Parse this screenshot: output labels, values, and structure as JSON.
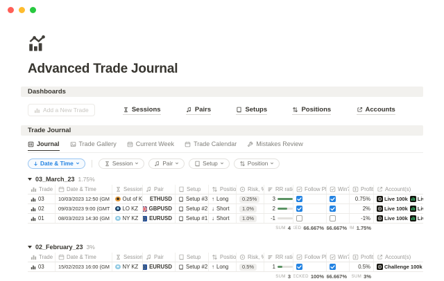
{
  "page": {
    "title": "Advanced Trade Journal",
    "icon": "trend-chart"
  },
  "colors": {
    "accent": "#2383e2",
    "progress_green": "#5b9363",
    "session_orange": "#e39a3b",
    "session_navy": "#1d3c63",
    "session_sky": "#93cbe4",
    "account_chart_green": "#38c172"
  },
  "dashboards": {
    "heading": "Dashboards",
    "add_button": "Add a New Trade",
    "links": [
      {
        "icon": "hourglass",
        "label": "Sessions"
      },
      {
        "icon": "note",
        "label": "Pairs"
      },
      {
        "icon": "book",
        "label": "Setups"
      },
      {
        "icon": "updown",
        "label": "Positions"
      },
      {
        "icon": "relation",
        "label": "Accounts"
      }
    ]
  },
  "journal": {
    "heading": "Trade Journal",
    "tabs": [
      {
        "icon": "database",
        "label": "Journal",
        "active": true
      },
      {
        "icon": "gallery",
        "label": "Trade Gallery",
        "active": false
      },
      {
        "icon": "calendar-week",
        "label": "Current Week",
        "active": false
      },
      {
        "icon": "calendar",
        "label": "Trade Calendar",
        "active": false
      },
      {
        "icon": "wrench",
        "label": "Mistakes Review",
        "active": false
      }
    ],
    "sort": {
      "label": "Date & Time"
    },
    "filters": [
      {
        "icon": "hourglass",
        "label": "Session"
      },
      {
        "icon": "note",
        "label": "Pair"
      },
      {
        "icon": "book",
        "label": "Setup"
      },
      {
        "icon": "updown",
        "label": "Position"
      }
    ],
    "columns": [
      {
        "icon": "bars",
        "label": "Trade"
      },
      {
        "icon": "calendar",
        "label": "Date & Time"
      },
      {
        "icon": "hourglass",
        "label": "Session"
      },
      {
        "icon": "note",
        "label": "Pair"
      },
      {
        "icon": "book",
        "label": "Setup"
      },
      {
        "icon": "updown",
        "label": "Position"
      },
      {
        "icon": "target",
        "label": "Risk, %"
      },
      {
        "icon": "rows",
        "label": "RR ratio"
      },
      {
        "icon": "checkbox",
        "label": "Follow Plan"
      },
      {
        "icon": "checkbox",
        "label": "Win?"
      },
      {
        "icon": "formula",
        "label": "Profit"
      },
      {
        "icon": "relation",
        "label": "Account(s)"
      }
    ],
    "groups": [
      {
        "name": "03_March_23",
        "pct": "1.75%",
        "rows": [
          {
            "trade": "03",
            "datetime": "10/03/2023 12:50 (GM",
            "session": "Out of KZ",
            "session_color": "orange",
            "pair": "ETHUSD",
            "pair_flag": null,
            "setup": "Setup #3",
            "position": "Long",
            "dir": "up",
            "risk": "0.25%",
            "rr": "3",
            "rr_fill": 1,
            "follow": true,
            "win": true,
            "profit": "0.75%",
            "accounts": [
              {
                "label": "Live 100k",
                "icon": "target"
              },
              {
                "label": "Live",
                "icon": "chart"
              }
            ]
          },
          {
            "trade": "02",
            "datetime": "09/03/2023 9:00 (GMT",
            "session": "LO KZ",
            "session_color": "navy",
            "pair": "GBPUSD",
            "pair_flag": "gb",
            "setup": "Setup #2",
            "position": "Short",
            "dir": "down",
            "risk": "1.0%",
            "rr": "2",
            "rr_fill": 0.62,
            "follow": true,
            "win": true,
            "profit": "2%",
            "accounts": [
              {
                "label": "Live 100k",
                "icon": "target"
              },
              {
                "label": "Live",
                "icon": "chart"
              }
            ]
          },
          {
            "trade": "01",
            "datetime": "08/03/2023 14:30 (GM",
            "session": "NY KZ",
            "session_color": "sky",
            "pair": "EURUSD",
            "pair_flag": "eu",
            "setup": "Setup #1",
            "position": "Short",
            "dir": "down",
            "risk": "1.0%",
            "rr": "-1",
            "rr_fill": 0,
            "follow": false,
            "win": false,
            "profit": "-1%",
            "accounts": [
              {
                "label": "Live 100k",
                "icon": "target"
              },
              {
                "label": "Live",
                "icon": "chart"
              }
            ]
          }
        ],
        "summary": [
          {
            "col": 7,
            "label": "SUM",
            "value": "4"
          },
          {
            "col": 8,
            "label": "CHECKED",
            "value": "66.667%"
          },
          {
            "col": 9,
            "label": "",
            "value": "66.667%"
          },
          {
            "col": 10,
            "label": "SUM",
            "value": "1.75%"
          }
        ]
      },
      {
        "name": "02_February_23",
        "pct": "3%",
        "rows": [
          {
            "trade": "03",
            "datetime": "15/02/2023 16:00 (GM",
            "session": "NY KZ",
            "session_color": "sky",
            "pair": "EURUSD",
            "pair_flag": "eu",
            "setup": "Setup #2",
            "position": "Long",
            "dir": "up",
            "risk": "0.5%",
            "rr": "1",
            "rr_fill": 0.3,
            "follow": true,
            "win": true,
            "profit": "0.5%",
            "accounts": [
              {
                "label": "Challenge 100k",
                "icon": "target"
              }
            ]
          }
        ],
        "summary": [
          {
            "col": 7,
            "label": "SUM",
            "value": "3"
          },
          {
            "col": 8,
            "label": "CHECKED",
            "value": "100%"
          },
          {
            "col": 9,
            "label": "",
            "value": "66.667%"
          },
          {
            "col": 10,
            "label": "SUM",
            "value": "3%"
          }
        ]
      }
    ]
  }
}
